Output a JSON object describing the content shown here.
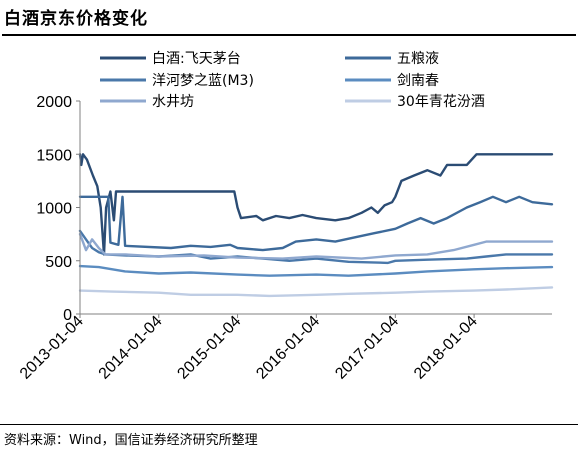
{
  "header": {
    "title": "白酒京东价格变化"
  },
  "footer": {
    "source": "资料来源：Wind，国信证券经济研究所整理"
  },
  "chart_data": {
    "type": "line",
    "title": "",
    "xlabel": "",
    "ylabel": "",
    "ylim": [
      0,
      2000
    ],
    "y_ticks": [
      0,
      500,
      1000,
      1500,
      2000
    ],
    "x_ticks": [
      "2013-01-04",
      "2014-01-04",
      "2015-01-04",
      "2016-01-04",
      "2017-01-04",
      "2018-01-04"
    ],
    "x_range": [
      "2013-01-04",
      "2018-12-31"
    ],
    "grid": false,
    "legend_position": "top",
    "series": [
      {
        "name": "白酒:飞天茅台",
        "color": "#2b4c74",
        "points": [
          [
            "2013-01-04",
            1500
          ],
          [
            "2013-01-10",
            1400
          ],
          [
            "2013-01-18",
            1500
          ],
          [
            "2013-02-05",
            1450
          ],
          [
            "2013-03-05",
            1300
          ],
          [
            "2013-03-25",
            1200
          ],
          [
            "2013-04-10",
            1000
          ],
          [
            "2013-04-25",
            560
          ],
          [
            "2013-05-05",
            1000
          ],
          [
            "2013-05-25",
            1150
          ],
          [
            "2013-06-10",
            880
          ],
          [
            "2013-06-20",
            1150
          ],
          [
            "2013-07-25",
            1150
          ],
          [
            "2013-08-05",
            1150
          ],
          [
            "2014-12-20",
            1150
          ],
          [
            "2015-01-04",
            1000
          ],
          [
            "2015-01-20",
            900
          ],
          [
            "2015-04-01",
            920
          ],
          [
            "2015-05-01",
            880
          ],
          [
            "2015-07-01",
            920
          ],
          [
            "2015-09-01",
            900
          ],
          [
            "2015-11-01",
            930
          ],
          [
            "2016-01-04",
            900
          ],
          [
            "2016-04-01",
            880
          ],
          [
            "2016-06-01",
            900
          ],
          [
            "2016-08-01",
            950
          ],
          [
            "2016-09-15",
            1000
          ],
          [
            "2016-10-15",
            950
          ],
          [
            "2016-11-15",
            1020
          ],
          [
            "2016-12-20",
            1050
          ],
          [
            "2017-01-04",
            1100
          ],
          [
            "2017-02-01",
            1250
          ],
          [
            "2017-04-01",
            1300
          ],
          [
            "2017-06-01",
            1350
          ],
          [
            "2017-08-01",
            1300
          ],
          [
            "2017-09-01",
            1400
          ],
          [
            "2017-12-01",
            1400
          ],
          [
            "2018-01-15",
            1500
          ],
          [
            "2018-12-31",
            1500
          ]
        ]
      },
      {
        "name": "五粮液",
        "color": "#3d6a9a",
        "points": [
          [
            "2013-01-04",
            1100
          ],
          [
            "2013-05-15",
            1100
          ],
          [
            "2013-05-25",
            670
          ],
          [
            "2013-07-01",
            650
          ],
          [
            "2013-07-20",
            1100
          ],
          [
            "2013-08-01",
            640
          ],
          [
            "2014-03-01",
            620
          ],
          [
            "2014-06-01",
            640
          ],
          [
            "2014-09-01",
            630
          ],
          [
            "2014-12-01",
            650
          ],
          [
            "2015-01-04",
            620
          ],
          [
            "2015-05-01",
            600
          ],
          [
            "2015-08-01",
            620
          ],
          [
            "2015-10-01",
            680
          ],
          [
            "2016-01-04",
            700
          ],
          [
            "2016-04-01",
            680
          ],
          [
            "2016-07-01",
            720
          ],
          [
            "2016-10-01",
            760
          ],
          [
            "2017-01-04",
            800
          ],
          [
            "2017-03-01",
            850
          ],
          [
            "2017-05-01",
            900
          ],
          [
            "2017-07-01",
            850
          ],
          [
            "2017-09-01",
            900
          ],
          [
            "2017-12-01",
            1000
          ],
          [
            "2018-02-01",
            1050
          ],
          [
            "2018-04-01",
            1100
          ],
          [
            "2018-06-01",
            1050
          ],
          [
            "2018-08-01",
            1100
          ],
          [
            "2018-10-01",
            1050
          ],
          [
            "2018-12-31",
            1030
          ]
        ]
      },
      {
        "name": "洋河梦之蓝(M3)",
        "color": "#4a78aa",
        "points": [
          [
            "2013-01-04",
            780
          ],
          [
            "2013-02-01",
            700
          ],
          [
            "2013-03-01",
            620
          ],
          [
            "2013-04-01",
            580
          ],
          [
            "2013-05-01",
            560
          ],
          [
            "2013-08-01",
            550
          ],
          [
            "2014-01-04",
            540
          ],
          [
            "2014-06-01",
            560
          ],
          [
            "2014-09-01",
            520
          ],
          [
            "2015-01-04",
            540
          ],
          [
            "2015-05-01",
            520
          ],
          [
            "2015-09-01",
            500
          ],
          [
            "2016-01-04",
            520
          ],
          [
            "2016-06-01",
            490
          ],
          [
            "2016-12-01",
            480
          ],
          [
            "2017-01-04",
            500
          ],
          [
            "2017-06-01",
            510
          ],
          [
            "2017-12-01",
            520
          ],
          [
            "2018-03-01",
            540
          ],
          [
            "2018-06-01",
            560
          ],
          [
            "2018-12-31",
            560
          ]
        ]
      },
      {
        "name": "剑南春",
        "color": "#5b8cc0",
        "points": [
          [
            "2013-01-04",
            450
          ],
          [
            "2013-04-01",
            440
          ],
          [
            "2013-08-01",
            400
          ],
          [
            "2014-01-04",
            380
          ],
          [
            "2014-06-01",
            390
          ],
          [
            "2015-01-04",
            370
          ],
          [
            "2015-06-01",
            360
          ],
          [
            "2016-01-04",
            370
          ],
          [
            "2016-06-01",
            360
          ],
          [
            "2017-01-04",
            380
          ],
          [
            "2017-06-01",
            400
          ],
          [
            "2018-01-04",
            420
          ],
          [
            "2018-06-01",
            430
          ],
          [
            "2018-12-31",
            440
          ]
        ]
      },
      {
        "name": "水井坊",
        "color": "#8fa8cf",
        "points": [
          [
            "2013-01-04",
            750
          ],
          [
            "2013-02-01",
            600
          ],
          [
            "2013-03-01",
            700
          ],
          [
            "2013-04-01",
            620
          ],
          [
            "2013-05-01",
            560
          ],
          [
            "2013-08-01",
            560
          ],
          [
            "2014-01-04",
            540
          ],
          [
            "2014-08-01",
            550
          ],
          [
            "2015-01-04",
            530
          ],
          [
            "2015-08-01",
            520
          ],
          [
            "2016-01-04",
            540
          ],
          [
            "2016-08-01",
            520
          ],
          [
            "2017-01-04",
            550
          ],
          [
            "2017-06-01",
            560
          ],
          [
            "2017-10-01",
            600
          ],
          [
            "2018-01-04",
            650
          ],
          [
            "2018-03-01",
            680
          ],
          [
            "2018-12-31",
            680
          ]
        ]
      },
      {
        "name": "30年青花汾酒",
        "color": "#bfcde4",
        "points": [
          [
            "2013-01-04",
            220
          ],
          [
            "2013-06-01",
            210
          ],
          [
            "2014-01-04",
            200
          ],
          [
            "2014-06-01",
            180
          ],
          [
            "2015-01-04",
            180
          ],
          [
            "2015-06-01",
            170
          ],
          [
            "2016-01-04",
            180
          ],
          [
            "2016-06-01",
            190
          ],
          [
            "2017-01-04",
            200
          ],
          [
            "2017-06-01",
            210
          ],
          [
            "2018-01-04",
            220
          ],
          [
            "2018-06-01",
            230
          ],
          [
            "2018-12-31",
            250
          ]
        ]
      }
    ]
  }
}
